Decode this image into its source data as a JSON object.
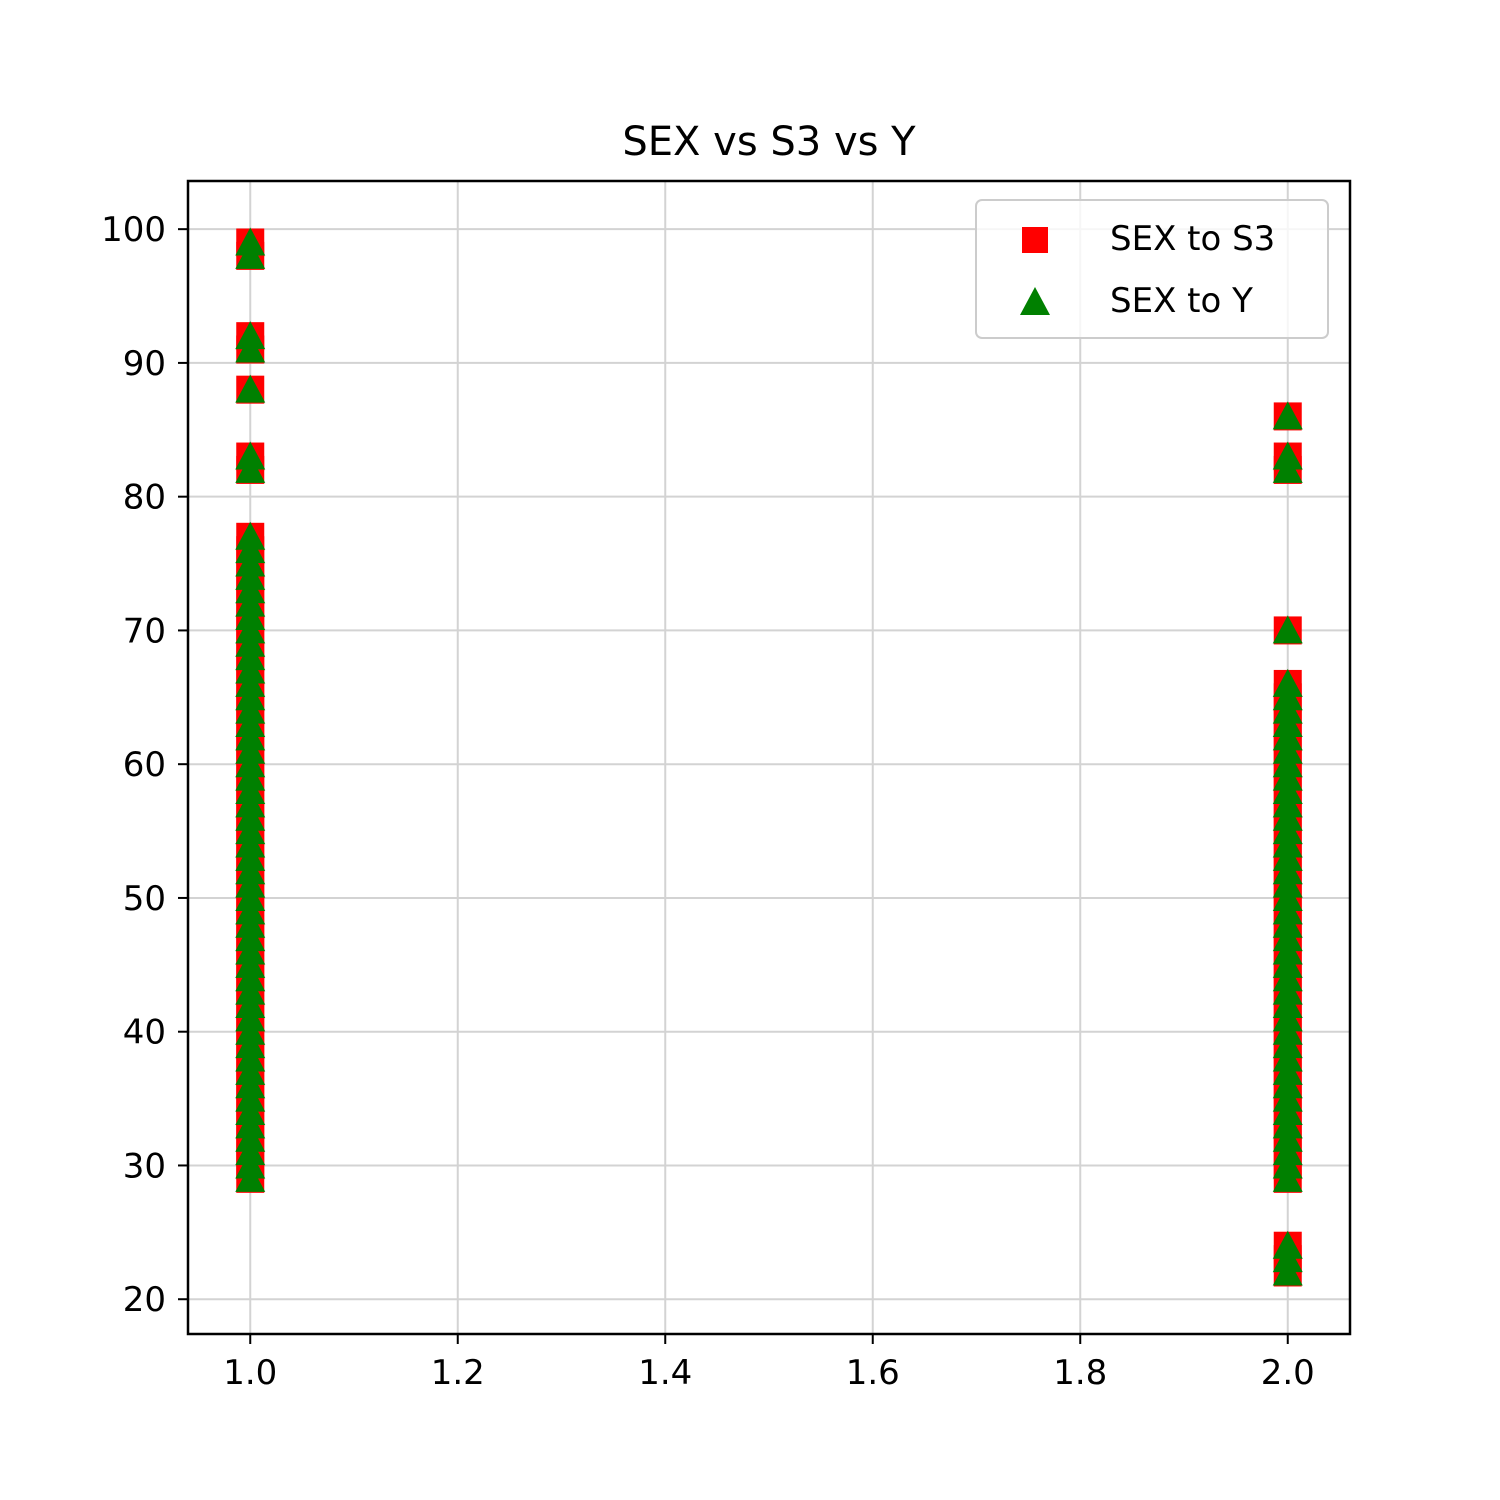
{
  "chart_data": {
    "type": "scatter",
    "title": "SEX vs S3 vs Y",
    "xlabel": "",
    "ylabel": "",
    "xlim": [
      0.94,
      2.06
    ],
    "ylim": [
      17.4,
      103.6
    ],
    "xticks": [
      1.0,
      1.2,
      1.4,
      1.6,
      1.8,
      2.0
    ],
    "xtick_labels": [
      "1.0",
      "1.2",
      "1.4",
      "1.6",
      "1.8",
      "2.0"
    ],
    "yticks": [
      20,
      30,
      40,
      50,
      60,
      70,
      80,
      90,
      100
    ],
    "ytick_labels": [
      "20",
      "30",
      "40",
      "50",
      "60",
      "70",
      "80",
      "90",
      "100"
    ],
    "grid": true,
    "legend_position": "top-right",
    "series": [
      {
        "name": "SEX to S3",
        "marker": "square",
        "color": "#ff0000",
        "points": [
          [
            1,
            29
          ],
          [
            1,
            30
          ],
          [
            1,
            31
          ],
          [
            1,
            32
          ],
          [
            1,
            33
          ],
          [
            1,
            34
          ],
          [
            1,
            35
          ],
          [
            1,
            36
          ],
          [
            1,
            37
          ],
          [
            1,
            38
          ],
          [
            1,
            39
          ],
          [
            1,
            40
          ],
          [
            1,
            41
          ],
          [
            1,
            42
          ],
          [
            1,
            43
          ],
          [
            1,
            44
          ],
          [
            1,
            45
          ],
          [
            1,
            46
          ],
          [
            1,
            47
          ],
          [
            1,
            48
          ],
          [
            1,
            49
          ],
          [
            1,
            50
          ],
          [
            1,
            51
          ],
          [
            1,
            52
          ],
          [
            1,
            53
          ],
          [
            1,
            54
          ],
          [
            1,
            55
          ],
          [
            1,
            56
          ],
          [
            1,
            57
          ],
          [
            1,
            58
          ],
          [
            1,
            59
          ],
          [
            1,
            60
          ],
          [
            1,
            61
          ],
          [
            1,
            62
          ],
          [
            1,
            63
          ],
          [
            1,
            64
          ],
          [
            1,
            65
          ],
          [
            1,
            66
          ],
          [
            1,
            67
          ],
          [
            1,
            68
          ],
          [
            1,
            69
          ],
          [
            1,
            70
          ],
          [
            1,
            71
          ],
          [
            1,
            72
          ],
          [
            1,
            73
          ],
          [
            1,
            74
          ],
          [
            1,
            75
          ],
          [
            1,
            76
          ],
          [
            1,
            77
          ],
          [
            1,
            82
          ],
          [
            1,
            83
          ],
          [
            1,
            88
          ],
          [
            1,
            91
          ],
          [
            1,
            92
          ],
          [
            1,
            98
          ],
          [
            1,
            99
          ],
          [
            2,
            29
          ],
          [
            2,
            30
          ],
          [
            2,
            31
          ],
          [
            2,
            32
          ],
          [
            2,
            33
          ],
          [
            2,
            34
          ],
          [
            2,
            35
          ],
          [
            2,
            36
          ],
          [
            2,
            37
          ],
          [
            2,
            38
          ],
          [
            2,
            39
          ],
          [
            2,
            40
          ],
          [
            2,
            41
          ],
          [
            2,
            42
          ],
          [
            2,
            43
          ],
          [
            2,
            44
          ],
          [
            2,
            45
          ],
          [
            2,
            46
          ],
          [
            2,
            47
          ],
          [
            2,
            48
          ],
          [
            2,
            49
          ],
          [
            2,
            50
          ],
          [
            2,
            51
          ],
          [
            2,
            52
          ],
          [
            2,
            53
          ],
          [
            2,
            54
          ],
          [
            2,
            55
          ],
          [
            2,
            56
          ],
          [
            2,
            57
          ],
          [
            2,
            58
          ],
          [
            2,
            59
          ],
          [
            2,
            60
          ],
          [
            2,
            61
          ],
          [
            2,
            62
          ],
          [
            2,
            63
          ],
          [
            2,
            64
          ],
          [
            2,
            65
          ],
          [
            2,
            66
          ],
          [
            2,
            70
          ],
          [
            2,
            22
          ],
          [
            2,
            23
          ],
          [
            2,
            24
          ],
          [
            2,
            82
          ],
          [
            2,
            83
          ],
          [
            2,
            86
          ]
        ]
      },
      {
        "name": "SEX to Y",
        "marker": "triangle",
        "color": "#008000",
        "points": [
          [
            1,
            29
          ],
          [
            1,
            30
          ],
          [
            1,
            31
          ],
          [
            1,
            32
          ],
          [
            1,
            33
          ],
          [
            1,
            34
          ],
          [
            1,
            35
          ],
          [
            1,
            36
          ],
          [
            1,
            37
          ],
          [
            1,
            38
          ],
          [
            1,
            39
          ],
          [
            1,
            40
          ],
          [
            1,
            41
          ],
          [
            1,
            42
          ],
          [
            1,
            43
          ],
          [
            1,
            44
          ],
          [
            1,
            45
          ],
          [
            1,
            46
          ],
          [
            1,
            47
          ],
          [
            1,
            48
          ],
          [
            1,
            49
          ],
          [
            1,
            50
          ],
          [
            1,
            51
          ],
          [
            1,
            52
          ],
          [
            1,
            53
          ],
          [
            1,
            54
          ],
          [
            1,
            55
          ],
          [
            1,
            56
          ],
          [
            1,
            57
          ],
          [
            1,
            58
          ],
          [
            1,
            59
          ],
          [
            1,
            60
          ],
          [
            1,
            61
          ],
          [
            1,
            62
          ],
          [
            1,
            63
          ],
          [
            1,
            64
          ],
          [
            1,
            65
          ],
          [
            1,
            66
          ],
          [
            1,
            67
          ],
          [
            1,
            68
          ],
          [
            1,
            69
          ],
          [
            1,
            70
          ],
          [
            1,
            71
          ],
          [
            1,
            72
          ],
          [
            1,
            73
          ],
          [
            1,
            74
          ],
          [
            1,
            75
          ],
          [
            1,
            76
          ],
          [
            1,
            77
          ],
          [
            1,
            82
          ],
          [
            1,
            83
          ],
          [
            1,
            88
          ],
          [
            1,
            91
          ],
          [
            1,
            92
          ],
          [
            1,
            98
          ],
          [
            1,
            99
          ],
          [
            2,
            29
          ],
          [
            2,
            30
          ],
          [
            2,
            31
          ],
          [
            2,
            32
          ],
          [
            2,
            33
          ],
          [
            2,
            34
          ],
          [
            2,
            35
          ],
          [
            2,
            36
          ],
          [
            2,
            37
          ],
          [
            2,
            38
          ],
          [
            2,
            39
          ],
          [
            2,
            40
          ],
          [
            2,
            41
          ],
          [
            2,
            42
          ],
          [
            2,
            43
          ],
          [
            2,
            44
          ],
          [
            2,
            45
          ],
          [
            2,
            46
          ],
          [
            2,
            47
          ],
          [
            2,
            48
          ],
          [
            2,
            49
          ],
          [
            2,
            50
          ],
          [
            2,
            51
          ],
          [
            2,
            52
          ],
          [
            2,
            53
          ],
          [
            2,
            54
          ],
          [
            2,
            55
          ],
          [
            2,
            56
          ],
          [
            2,
            57
          ],
          [
            2,
            58
          ],
          [
            2,
            59
          ],
          [
            2,
            60
          ],
          [
            2,
            61
          ],
          [
            2,
            62
          ],
          [
            2,
            63
          ],
          [
            2,
            64
          ],
          [
            2,
            65
          ],
          [
            2,
            66
          ],
          [
            2,
            70
          ],
          [
            2,
            22
          ],
          [
            2,
            23
          ],
          [
            2,
            24
          ],
          [
            2,
            82
          ],
          [
            2,
            83
          ],
          [
            2,
            86
          ]
        ]
      }
    ]
  }
}
